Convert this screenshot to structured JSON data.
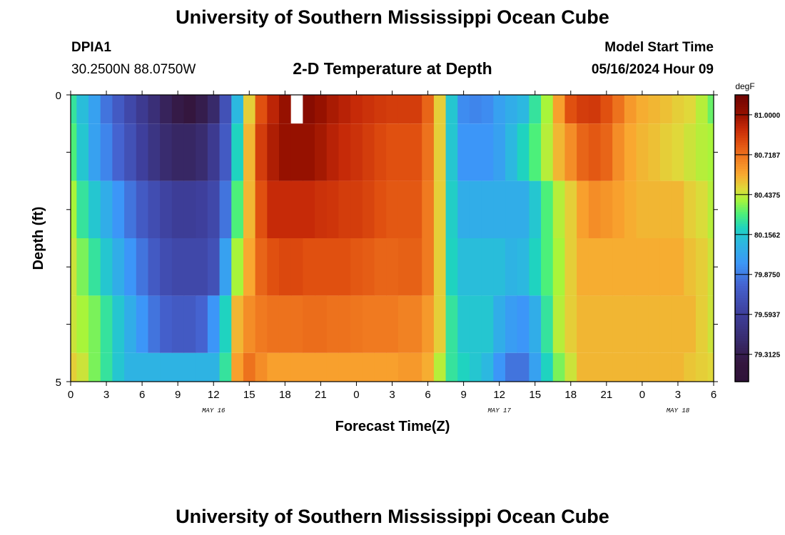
{
  "header": {
    "title": "University of Southern Mississippi Ocean Cube",
    "station": "DPIA1",
    "coords": "30.2500N  88.0750W",
    "subtitle": "2-D Temperature at Depth",
    "model_start_label": "Model Start Time",
    "model_start_value": "05/16/2024 Hour 09"
  },
  "footer": {
    "title": "University of Southern Mississippi Ocean Cube"
  },
  "chart_data": {
    "type": "heatmap",
    "title": "2-D Temperature at Depth",
    "xlabel": "Forecast Time(Z)",
    "ylabel": "Depth (ft)",
    "x_hours_from_start": [
      0,
      54
    ],
    "x_tick_labels": [
      "0",
      "3",
      "6",
      "9",
      "12",
      "15",
      "18",
      "21",
      "0",
      "3",
      "6",
      "9",
      "12",
      "15",
      "18",
      "21",
      "0",
      "3",
      "6"
    ],
    "date_labels": [
      {
        "label": "MAY 16",
        "hour": 12
      },
      {
        "label": "MAY 17",
        "hour": 36
      },
      {
        "label": "MAY 18",
        "hour": 51
      }
    ],
    "ylim": [
      0,
      5
    ],
    "y_tick_labels": [
      "0",
      "5"
    ],
    "depths": [
      0,
      1,
      2,
      3,
      4,
      5
    ],
    "colorbar": {
      "units": "degF",
      "range": [
        79.12,
        81.14
      ],
      "tick_values": [
        81.0,
        80.71875,
        80.4375,
        80.15625,
        79.875,
        79.59375,
        79.3125
      ],
      "tick_labels": [
        "81.0000",
        "80.7187",
        "80.4375",
        "80.1562",
        "79.8750",
        "79.5937",
        "79.3125"
      ]
    },
    "values": [
      [
        80.25,
        80.12,
        80.0,
        79.85,
        79.75,
        79.65,
        79.55,
        79.45,
        79.35,
        79.28,
        79.25,
        79.3,
        79.4,
        79.7,
        80.1,
        80.5,
        80.8,
        80.92,
        81.0,
        null,
        81.05,
        81.0,
        80.96,
        80.93,
        80.9,
        80.88,
        80.86,
        80.85,
        80.85,
        80.85,
        80.75,
        80.5,
        80.15,
        79.92,
        79.9,
        79.92,
        80.0,
        80.05,
        80.1,
        80.25,
        80.4,
        80.6,
        80.8,
        80.85,
        80.86,
        80.8,
        80.72,
        80.62,
        80.57,
        80.55,
        80.53,
        80.5,
        80.48,
        80.42,
        80.33
      ],
      [
        80.3,
        80.15,
        80.0,
        79.9,
        79.8,
        79.7,
        79.6,
        79.5,
        79.42,
        79.38,
        79.38,
        79.42,
        79.55,
        79.75,
        80.2,
        80.55,
        80.85,
        80.95,
        81.0,
        81.0,
        81.0,
        80.97,
        80.93,
        80.9,
        80.88,
        80.85,
        80.82,
        80.8,
        80.8,
        80.8,
        80.72,
        80.5,
        80.15,
        79.95,
        79.95,
        79.95,
        80.0,
        80.1,
        80.2,
        80.3,
        80.42,
        80.55,
        80.65,
        80.75,
        80.78,
        80.75,
        80.65,
        80.58,
        80.55,
        80.53,
        80.5,
        80.48,
        80.45,
        80.42,
        80.4
      ],
      [
        80.4,
        80.25,
        80.15,
        80.05,
        79.95,
        79.85,
        79.75,
        79.68,
        79.62,
        79.58,
        79.58,
        79.6,
        79.65,
        79.85,
        80.3,
        80.55,
        80.8,
        80.9,
        80.9,
        80.9,
        80.9,
        80.88,
        80.87,
        80.85,
        80.85,
        80.83,
        80.8,
        80.78,
        80.78,
        80.78,
        80.7,
        80.5,
        80.18,
        80.05,
        80.05,
        80.05,
        80.05,
        80.05,
        80.05,
        80.15,
        80.3,
        80.42,
        80.5,
        80.6,
        80.65,
        80.63,
        80.6,
        80.57,
        80.55,
        80.55,
        80.55,
        80.55,
        80.5,
        80.47,
        80.42
      ],
      [
        80.45,
        80.35,
        80.25,
        80.15,
        80.05,
        79.95,
        79.85,
        79.75,
        79.68,
        79.65,
        79.65,
        79.65,
        79.7,
        80.0,
        80.4,
        80.58,
        80.75,
        80.8,
        80.82,
        80.82,
        80.8,
        80.8,
        80.8,
        80.8,
        80.78,
        80.77,
        80.75,
        80.75,
        80.76,
        80.76,
        80.7,
        80.5,
        80.2,
        80.12,
        80.12,
        80.12,
        80.12,
        80.08,
        80.1,
        80.2,
        80.3,
        80.4,
        80.5,
        80.57,
        80.57,
        80.57,
        80.57,
        80.57,
        80.57,
        80.57,
        80.57,
        80.57,
        80.53,
        80.5,
        80.45
      ],
      [
        80.45,
        80.4,
        80.35,
        80.25,
        80.15,
        80.05,
        79.95,
        79.85,
        79.78,
        79.75,
        79.75,
        79.8,
        79.95,
        80.2,
        80.55,
        80.65,
        80.7,
        80.72,
        80.72,
        80.72,
        80.73,
        80.73,
        80.72,
        80.72,
        80.71,
        80.7,
        80.7,
        80.7,
        80.68,
        80.68,
        80.62,
        80.5,
        80.25,
        80.15,
        80.15,
        80.15,
        80.05,
        79.98,
        79.95,
        80.05,
        80.25,
        80.42,
        80.5,
        80.55,
        80.55,
        80.55,
        80.55,
        80.55,
        80.55,
        80.55,
        80.55,
        80.55,
        80.55,
        80.5,
        80.45
      ],
      [
        80.5,
        80.45,
        80.35,
        80.25,
        80.15,
        80.08,
        80.08,
        80.08,
        80.08,
        80.08,
        80.08,
        80.08,
        80.08,
        80.25,
        80.6,
        80.72,
        80.65,
        80.6,
        80.6,
        80.6,
        80.6,
        80.6,
        80.6,
        80.6,
        80.6,
        80.6,
        80.6,
        80.6,
        80.62,
        80.62,
        80.57,
        80.42,
        80.25,
        80.2,
        80.15,
        80.1,
        79.95,
        79.85,
        79.85,
        80.0,
        80.2,
        80.35,
        80.45,
        80.55,
        80.55,
        80.55,
        80.55,
        80.55,
        80.55,
        80.55,
        80.55,
        80.55,
        80.52,
        80.5,
        80.48
      ]
    ]
  }
}
